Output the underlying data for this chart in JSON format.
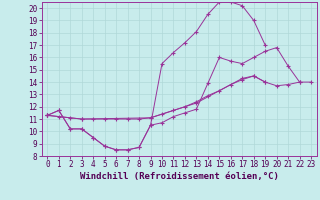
{
  "xlabel": "Windchill (Refroidissement éolien,°C)",
  "background_color": "#c8ecec",
  "grid_color": "#b0d8d8",
  "line_color": "#993399",
  "xlim": [
    -0.5,
    23.5
  ],
  "ylim": [
    8,
    20.5
  ],
  "xticks": [
    0,
    1,
    2,
    3,
    4,
    5,
    6,
    7,
    8,
    9,
    10,
    11,
    12,
    13,
    14,
    15,
    16,
    17,
    18,
    19,
    20,
    21,
    22,
    23
  ],
  "yticks": [
    8,
    9,
    10,
    11,
    12,
    13,
    14,
    15,
    16,
    17,
    18,
    19,
    20
  ],
  "series": [
    {
      "x": [
        0,
        1,
        2,
        3,
        4,
        5,
        6,
        7,
        8,
        9,
        10,
        11,
        12,
        13,
        14,
        15,
        16,
        17,
        18,
        19
      ],
      "y": [
        11.3,
        11.7,
        10.2,
        10.2,
        9.5,
        8.8,
        8.5,
        8.5,
        8.7,
        10.5,
        15.5,
        16.4,
        17.2,
        18.1,
        19.5,
        20.5,
        20.5,
        20.2,
        19.0,
        17.0
      ]
    },
    {
      "x": [
        0,
        1,
        2,
        3,
        4,
        5,
        6,
        7,
        8,
        9,
        10,
        11,
        12,
        13,
        14,
        15,
        16,
        17,
        18,
        19,
        20,
        21,
        22
      ],
      "y": [
        11.3,
        11.7,
        10.2,
        10.2,
        9.5,
        8.8,
        8.5,
        8.5,
        8.7,
        10.5,
        10.7,
        11.2,
        11.5,
        11.8,
        13.9,
        16.0,
        15.7,
        15.5,
        16.0,
        16.5,
        16.8,
        15.3,
        14.0
      ]
    },
    {
      "x": [
        0,
        3,
        9,
        13,
        17,
        18,
        19,
        20,
        21,
        22,
        23
      ],
      "y": [
        11.3,
        11.0,
        11.1,
        12.3,
        14.3,
        14.5,
        14.0,
        13.7,
        13.8,
        14.0,
        14.0
      ]
    },
    {
      "x": [
        0,
        1,
        2,
        3,
        4,
        5,
        6,
        7,
        8,
        9,
        10,
        11,
        12,
        13,
        14,
        15,
        16,
        17,
        18,
        19
      ],
      "y": [
        11.3,
        11.2,
        11.1,
        11.0,
        11.0,
        11.0,
        11.0,
        11.0,
        11.0,
        11.1,
        11.4,
        11.7,
        12.0,
        12.4,
        12.9,
        13.3,
        13.8,
        14.2,
        14.5,
        14.0
      ]
    }
  ],
  "tick_fontsize": 5.5,
  "label_fontsize": 6.5
}
